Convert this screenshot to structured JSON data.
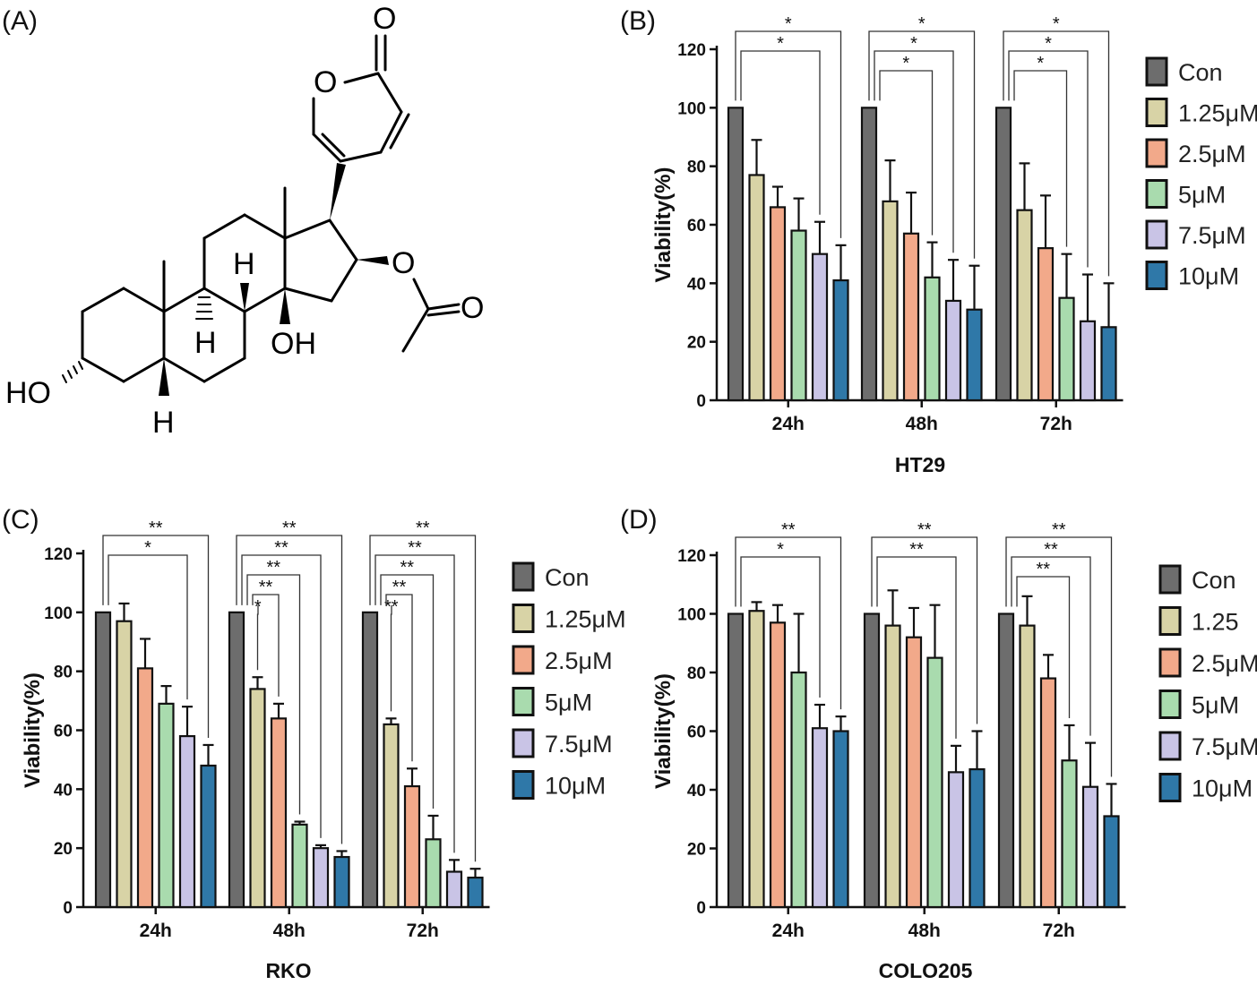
{
  "panel_labels": [
    "(A)",
    "(B)",
    "(C)",
    "(D)"
  ],
  "molecule": {
    "atom_labels": {
      "O_ring": "O",
      "O_carbonyl": "O",
      "O_ester": "O",
      "O_acetyl": "O",
      "HO": "HO",
      "OH": "OH",
      "H_top": "H",
      "H_mid": "H",
      "H_bottom": "H"
    }
  },
  "colors": {
    "Con": "#6d6d6d",
    "1.25": "#d8d3a6",
    "2.5": "#f2a98a",
    "5": "#a9dbae",
    "7.5": "#c9c4e6",
    "10": "#2f78a8"
  },
  "chart_data": [
    {
      "type": "bar",
      "panel": "(B)",
      "xlabel": "HT29",
      "ylabel": "Viability(%)",
      "ylim": [
        0,
        120
      ],
      "yticks": [
        "0",
        "20",
        "40",
        "60",
        "80",
        "100",
        "120"
      ],
      "categories": [
        "24h",
        "48h",
        "72h"
      ],
      "legend": [
        "Con",
        "1.25μM",
        "2.5μM",
        "5μM",
        "7.5μM",
        "10μM"
      ],
      "legend_position": "right",
      "series": [
        {
          "name": "Con",
          "values": [
            100,
            100,
            100
          ],
          "errors": [
            0,
            0,
            0
          ]
        },
        {
          "name": "1.25μM",
          "values": [
            77,
            68,
            65
          ],
          "errors": [
            12,
            14,
            16
          ]
        },
        {
          "name": "2.5μM",
          "values": [
            66,
            57,
            52
          ],
          "errors": [
            7,
            14,
            18
          ]
        },
        {
          "name": "5μM",
          "values": [
            58,
            42,
            35
          ],
          "errors": [
            11,
            12,
            15
          ]
        },
        {
          "name": "7.5μM",
          "values": [
            50,
            34,
            27
          ],
          "errors": [
            11,
            14,
            16
          ]
        },
        {
          "name": "10μM",
          "values": [
            41,
            31,
            25
          ],
          "errors": [
            12,
            15,
            15
          ]
        }
      ],
      "significance": [
        [
          {
            "to": 4,
            "label": "*"
          },
          {
            "to": 5,
            "label": "*"
          }
        ],
        [
          {
            "to": 3,
            "label": "*"
          },
          {
            "to": 4,
            "label": "*"
          },
          {
            "to": 5,
            "label": "*"
          }
        ],
        [
          {
            "to": 3,
            "label": "*"
          },
          {
            "to": 4,
            "label": "*"
          },
          {
            "to": 5,
            "label": "*"
          }
        ]
      ]
    },
    {
      "type": "bar",
      "panel": "(C)",
      "xlabel": "RKO",
      "ylabel": "Viability(%)",
      "ylim": [
        0,
        120
      ],
      "yticks": [
        "0",
        "20",
        "40",
        "60",
        "80",
        "100",
        "120"
      ],
      "categories": [
        "24h",
        "48h",
        "72h"
      ],
      "legend": [
        "Con",
        "1.25μM",
        "2.5μM",
        "5μM",
        "7.5μM",
        "10μM"
      ],
      "legend_position": "right",
      "series": [
        {
          "name": "Con",
          "values": [
            100,
            100,
            100
          ],
          "errors": [
            0,
            0,
            0
          ]
        },
        {
          "name": "1.25μM",
          "values": [
            97,
            74,
            62
          ],
          "errors": [
            6,
            4,
            2
          ]
        },
        {
          "name": "2.5μM",
          "values": [
            81,
            64,
            41
          ],
          "errors": [
            10,
            5,
            6
          ]
        },
        {
          "name": "5μM",
          "values": [
            69,
            28,
            23
          ],
          "errors": [
            6,
            1,
            8
          ]
        },
        {
          "name": "7.5μM",
          "values": [
            58,
            20,
            12
          ],
          "errors": [
            10,
            1,
            4
          ]
        },
        {
          "name": "10μM",
          "values": [
            48,
            17,
            10
          ],
          "errors": [
            7,
            2,
            3
          ]
        }
      ],
      "significance": [
        [
          {
            "to": 4,
            "label": "*"
          },
          {
            "to": 5,
            "label": "**"
          }
        ],
        [
          {
            "to": 1,
            "label": "*"
          },
          {
            "to": 2,
            "label": "**"
          },
          {
            "to": 3,
            "label": "**"
          },
          {
            "to": 4,
            "label": "**"
          },
          {
            "to": 5,
            "label": "**"
          }
        ],
        [
          {
            "to": 1,
            "label": "**"
          },
          {
            "to": 2,
            "label": "**"
          },
          {
            "to": 3,
            "label": "**"
          },
          {
            "to": 4,
            "label": "**"
          },
          {
            "to": 5,
            "label": "**"
          }
        ]
      ]
    },
    {
      "type": "bar",
      "panel": "(D)",
      "xlabel": "COLO205",
      "ylabel": "Viability(%)",
      "ylim": [
        0,
        120
      ],
      "yticks": [
        "0",
        "20",
        "40",
        "60",
        "80",
        "100",
        "120"
      ],
      "categories": [
        "24h",
        "48h",
        "72h"
      ],
      "legend": [
        "Con",
        "1.25",
        "2.5μM",
        "5μM",
        "7.5μM",
        "10μM"
      ],
      "legend_position": "right",
      "series": [
        {
          "name": "Con",
          "values": [
            100,
            100,
            100
          ],
          "errors": [
            0,
            0,
            0
          ]
        },
        {
          "name": "1.25",
          "values": [
            101,
            96,
            96
          ],
          "errors": [
            3,
            12,
            10
          ]
        },
        {
          "name": "2.5μM",
          "values": [
            97,
            92,
            78
          ],
          "errors": [
            6,
            10,
            8
          ]
        },
        {
          "name": "5μM",
          "values": [
            80,
            85,
            50
          ],
          "errors": [
            20,
            18,
            12
          ]
        },
        {
          "name": "7.5μM",
          "values": [
            61,
            46,
            41
          ],
          "errors": [
            8,
            9,
            15
          ]
        },
        {
          "name": "10μM",
          "values": [
            60,
            47,
            31
          ],
          "errors": [
            5,
            13,
            11
          ]
        }
      ],
      "significance": [
        [
          {
            "to": 4,
            "label": "*"
          },
          {
            "to": 5,
            "label": "**"
          }
        ],
        [
          {
            "to": 4,
            "label": "**"
          },
          {
            "to": 5,
            "label": "**"
          }
        ],
        [
          {
            "to": 3,
            "label": "**"
          },
          {
            "to": 4,
            "label": "**"
          },
          {
            "to": 5,
            "label": "**"
          }
        ]
      ]
    }
  ]
}
